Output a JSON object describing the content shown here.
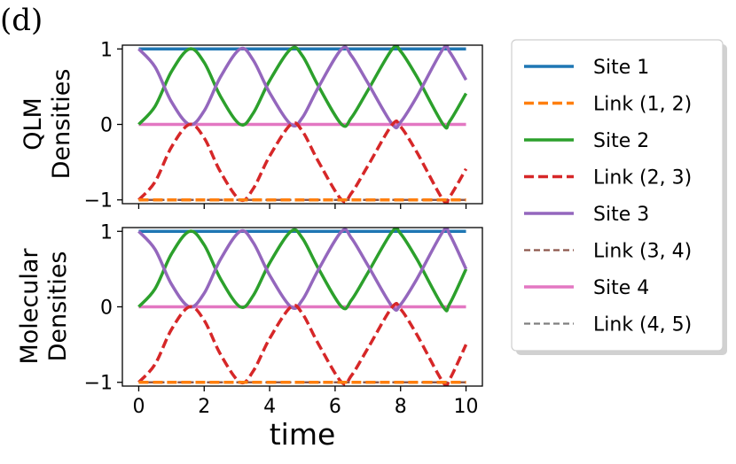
{
  "panel_label": "(d)",
  "chart_data": {
    "type": "line",
    "xlabel": "time",
    "xlim": [
      -0.5,
      10.5
    ],
    "x_ticks": [
      "0",
      "2",
      "4",
      "6",
      "8",
      "10"
    ],
    "x_tick_values": [
      0,
      2,
      4,
      6,
      8,
      10
    ],
    "legend_position": "right",
    "series_styles": [
      {
        "name": "Site 1",
        "color": "#1f77b4",
        "dash": "solid"
      },
      {
        "name": "Link (1, 2)",
        "color": "#ff7f0e",
        "dash": "dashed"
      },
      {
        "name": "Site 2",
        "color": "#2ca02c",
        "dash": "solid"
      },
      {
        "name": "Link (2, 3)",
        "color": "#d62728",
        "dash": "dashed"
      },
      {
        "name": "Site 3",
        "color": "#9467bd",
        "dash": "solid"
      },
      {
        "name": "Link (3, 4)",
        "color": "#8c564b",
        "dash": "dashed"
      },
      {
        "name": "Site 4",
        "color": "#e377c2",
        "dash": "solid"
      },
      {
        "name": "Link (4, 5)",
        "color": "#7f7f7f",
        "dash": "dashed"
      }
    ],
    "panels": [
      {
        "ylabel_line1": "QLM",
        "ylabel_line2": "Densities",
        "ylim": [
          -1.05,
          1.05
        ],
        "y_ticks": [
          "1",
          "0",
          "−1"
        ],
        "y_tick_values": [
          1,
          0,
          -1
        ],
        "x": [
          0,
          0.5,
          1.0,
          1.55,
          2.0,
          2.5,
          3.1,
          3.5,
          4.0,
          4.65,
          5.0,
          5.5,
          6.2,
          6.5,
          7.0,
          7.75,
          8.0,
          8.5,
          9.3,
          9.5,
          10.0
        ],
        "series": [
          {
            "name": "Site 1",
            "values": [
              1,
              1,
              1,
              1,
              1,
              1,
              1,
              1,
              1,
              1,
              1,
              1,
              1,
              1,
              1,
              1,
              1,
              1,
              1,
              1,
              1
            ]
          },
          {
            "name": "Link (1, 2)",
            "values": [
              -1,
              -1,
              -1,
              -1,
              -1,
              -1,
              -1,
              -1,
              -1,
              -1,
              -1,
              -1,
              -1,
              -1,
              -1,
              -1,
              -1,
              -1,
              -1,
              -1,
              -1
            ]
          },
          {
            "name": "Site 2",
            "values": [
              0.0,
              0.24,
              0.7,
              1.0,
              0.82,
              0.37,
              0.0,
              0.15,
              0.58,
              1.0,
              0.91,
              0.5,
              0.0,
              0.09,
              0.45,
              1.0,
              0.97,
              0.63,
              0.0,
              0.04,
              0.41
            ]
          },
          {
            "name": "Link (2, 3)",
            "values": [
              -1.0,
              -0.76,
              -0.3,
              0.0,
              -0.18,
              -0.63,
              -1.0,
              -0.85,
              -0.42,
              0.0,
              -0.09,
              -0.5,
              -1.0,
              -0.91,
              -0.55,
              0.0,
              -0.03,
              -0.37,
              -1.0,
              -0.96,
              -0.59
            ]
          },
          {
            "name": "Site 3",
            "values": [
              1.0,
              0.76,
              0.3,
              0.0,
              0.18,
              0.63,
              1.0,
              0.85,
              0.42,
              0.0,
              0.09,
              0.5,
              1.0,
              0.91,
              0.55,
              0.0,
              0.03,
              0.37,
              1.0,
              0.96,
              0.59
            ]
          },
          {
            "name": "Link (3, 4)",
            "values": [
              -1,
              -1,
              -1,
              -1,
              -1,
              -1,
              -1,
              -1,
              -1,
              -1,
              -1,
              -1,
              -1,
              -1,
              -1,
              -1,
              -1,
              -1,
              -1,
              -1,
              -1
            ]
          },
          {
            "name": "Site 4",
            "values": [
              0,
              0,
              0,
              0,
              0,
              0,
              0,
              0,
              0,
              0,
              0,
              0,
              0,
              0,
              0,
              0,
              0,
              0,
              0,
              0,
              0
            ]
          },
          {
            "name": "Link (4, 5)",
            "values": [
              -1,
              -1,
              -1,
              -1,
              -1,
              -1,
              -1,
              -1,
              -1,
              -1,
              -1,
              -1,
              -1,
              -1,
              -1,
              -1,
              -1,
              -1,
              -1,
              -1,
              -1
            ]
          }
        ]
      },
      {
        "ylabel_line1": "Molecular",
        "ylabel_line2": "Densities",
        "ylim": [
          -1.05,
          1.05
        ],
        "y_ticks": [
          "1",
          "0",
          "−1"
        ],
        "y_tick_values": [
          1,
          0,
          -1
        ],
        "x": [
          0,
          0.5,
          1.0,
          1.55,
          2.0,
          2.5,
          3.1,
          3.5,
          4.0,
          4.65,
          5.0,
          5.5,
          6.2,
          6.5,
          7.0,
          7.75,
          8.0,
          8.5,
          9.3,
          9.5,
          10.0
        ],
        "series": [
          {
            "name": "Site 1",
            "values": [
              1,
              1,
              1,
              1,
              1,
              1,
              1,
              1,
              1,
              1,
              1,
              1,
              1,
              1,
              1,
              1,
              1,
              1,
              1,
              1,
              1
            ]
          },
          {
            "name": "Link (1, 2)",
            "values": [
              -1,
              -1,
              -1,
              -1,
              -1,
              -1,
              -1,
              -1,
              -1,
              -1,
              -1,
              -1,
              -1,
              -1,
              -1,
              -1,
              -1,
              -1,
              -1,
              -1,
              -1
            ]
          },
          {
            "name": "Site 2",
            "values": [
              0.0,
              0.24,
              0.7,
              1.0,
              0.82,
              0.37,
              0.0,
              0.15,
              0.58,
              1.0,
              0.91,
              0.5,
              0.0,
              0.09,
              0.45,
              1.0,
              0.97,
              0.63,
              0.0,
              0.04,
              0.5
            ]
          },
          {
            "name": "Link (2, 3)",
            "values": [
              -1.0,
              -0.76,
              -0.3,
              0.0,
              -0.18,
              -0.63,
              -1.0,
              -0.85,
              -0.42,
              0.0,
              -0.09,
              -0.5,
              -1.0,
              -0.91,
              -0.55,
              0.0,
              -0.03,
              -0.37,
              -1.0,
              -0.96,
              -0.5
            ]
          },
          {
            "name": "Site 3",
            "values": [
              1.0,
              0.76,
              0.3,
              0.0,
              0.18,
              0.63,
              1.0,
              0.85,
              0.42,
              0.0,
              0.09,
              0.5,
              1.0,
              0.91,
              0.55,
              0.0,
              0.03,
              0.37,
              1.0,
              0.96,
              0.5
            ]
          },
          {
            "name": "Link (3, 4)",
            "values": [
              -1,
              -1,
              -1,
              -1,
              -1,
              -1,
              -1,
              -1,
              -1,
              -1,
              -1,
              -1,
              -1,
              -1,
              -1,
              -1,
              -1,
              -1,
              -1,
              -1,
              -1
            ]
          },
          {
            "name": "Site 4",
            "values": [
              0,
              0,
              0,
              0,
              0,
              0,
              0,
              0,
              0,
              0,
              0,
              0,
              0,
              0,
              0,
              0,
              0,
              0,
              0,
              0,
              0
            ]
          },
          {
            "name": "Link (4, 5)",
            "values": [
              -1,
              -1,
              -1,
              -1,
              -1,
              -1,
              -1,
              -1,
              -1,
              -1,
              -1,
              -1,
              -1,
              -1,
              -1,
              -1,
              -1,
              -1,
              -1,
              -1,
              -1
            ]
          }
        ]
      }
    ]
  }
}
